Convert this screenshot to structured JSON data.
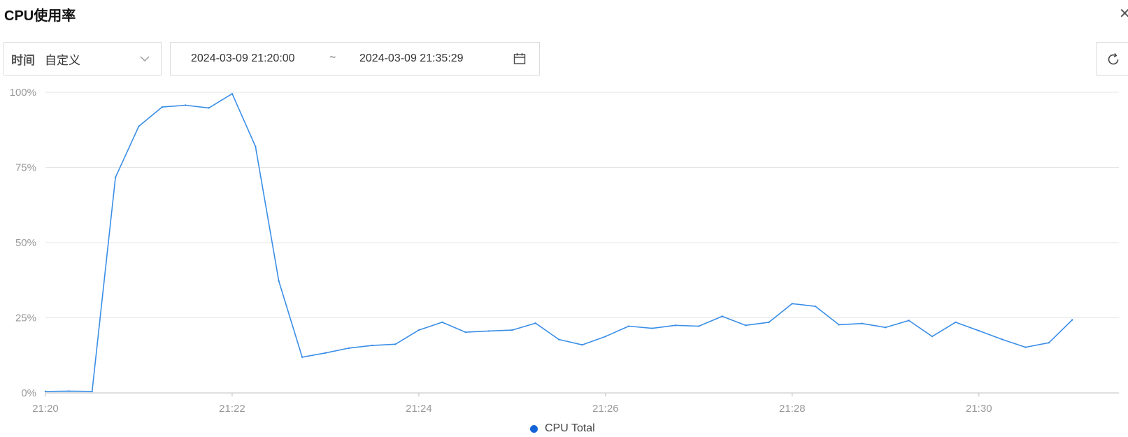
{
  "header": {
    "title": "CPU使用率"
  },
  "time_filter": {
    "label": "时间",
    "value": "自定义",
    "range_start": "2024-03-09 21:20:00",
    "range_separator": "~",
    "range_end": "2024-03-09 21:35:29"
  },
  "icons": {
    "close": "close-icon",
    "dropdown": "chevron-down-icon",
    "calendar": "calendar-icon",
    "refresh": "refresh-icon"
  },
  "chart_data": {
    "type": "line",
    "title": "",
    "xlabel": "",
    "ylabel": "",
    "ylim": [
      0,
      100
    ],
    "yticks": [
      "0%",
      "25%",
      "50%",
      "75%",
      "100%"
    ],
    "xticks": [
      "21:20",
      "21:22",
      "21:24",
      "21:26",
      "21:28",
      "21:30"
    ],
    "grid": true,
    "legend_position": "bottom",
    "series": [
      {
        "name": "CPU Total",
        "color": "#3a8ee6",
        "x": [
          "21:20:00",
          "21:20:15",
          "21:20:30",
          "21:20:45",
          "21:21:00",
          "21:21:15",
          "21:21:30",
          "21:21:45",
          "21:22:00",
          "21:22:15",
          "21:22:30",
          "21:22:45",
          "21:23:00",
          "21:23:15",
          "21:23:30",
          "21:23:45",
          "21:24:00",
          "21:24:15",
          "21:24:30",
          "21:24:45",
          "21:25:00",
          "21:25:15",
          "21:25:30",
          "21:25:45",
          "21:26:00",
          "21:26:15",
          "21:26:30",
          "21:26:45",
          "21:27:00",
          "21:27:15",
          "21:27:30",
          "21:27:45",
          "21:28:00",
          "21:28:15",
          "21:28:30",
          "21:28:45",
          "21:29:00",
          "21:29:15",
          "21:29:30",
          "21:29:45",
          "21:30:00",
          "21:30:15",
          "21:30:30",
          "21:30:45",
          "21:31:00"
        ],
        "values": [
          0.5,
          0.6,
          0.5,
          71.7,
          88.7,
          95.1,
          95.7,
          94.8,
          99.5,
          82,
          37.2,
          11.9,
          13.3,
          14.9,
          15.8,
          16.2,
          20.9,
          23.5,
          20.2,
          20.6,
          20.9,
          23.2,
          17.8,
          16,
          18.8,
          22.2,
          21.5,
          22.5,
          22.2,
          25.5,
          22.5,
          23.5,
          29.7,
          28.8,
          22.7,
          23.1,
          21.8,
          24.1,
          18.8,
          23.5,
          20.7,
          17.8,
          15.2,
          16.7,
          24.3
        ]
      }
    ]
  }
}
